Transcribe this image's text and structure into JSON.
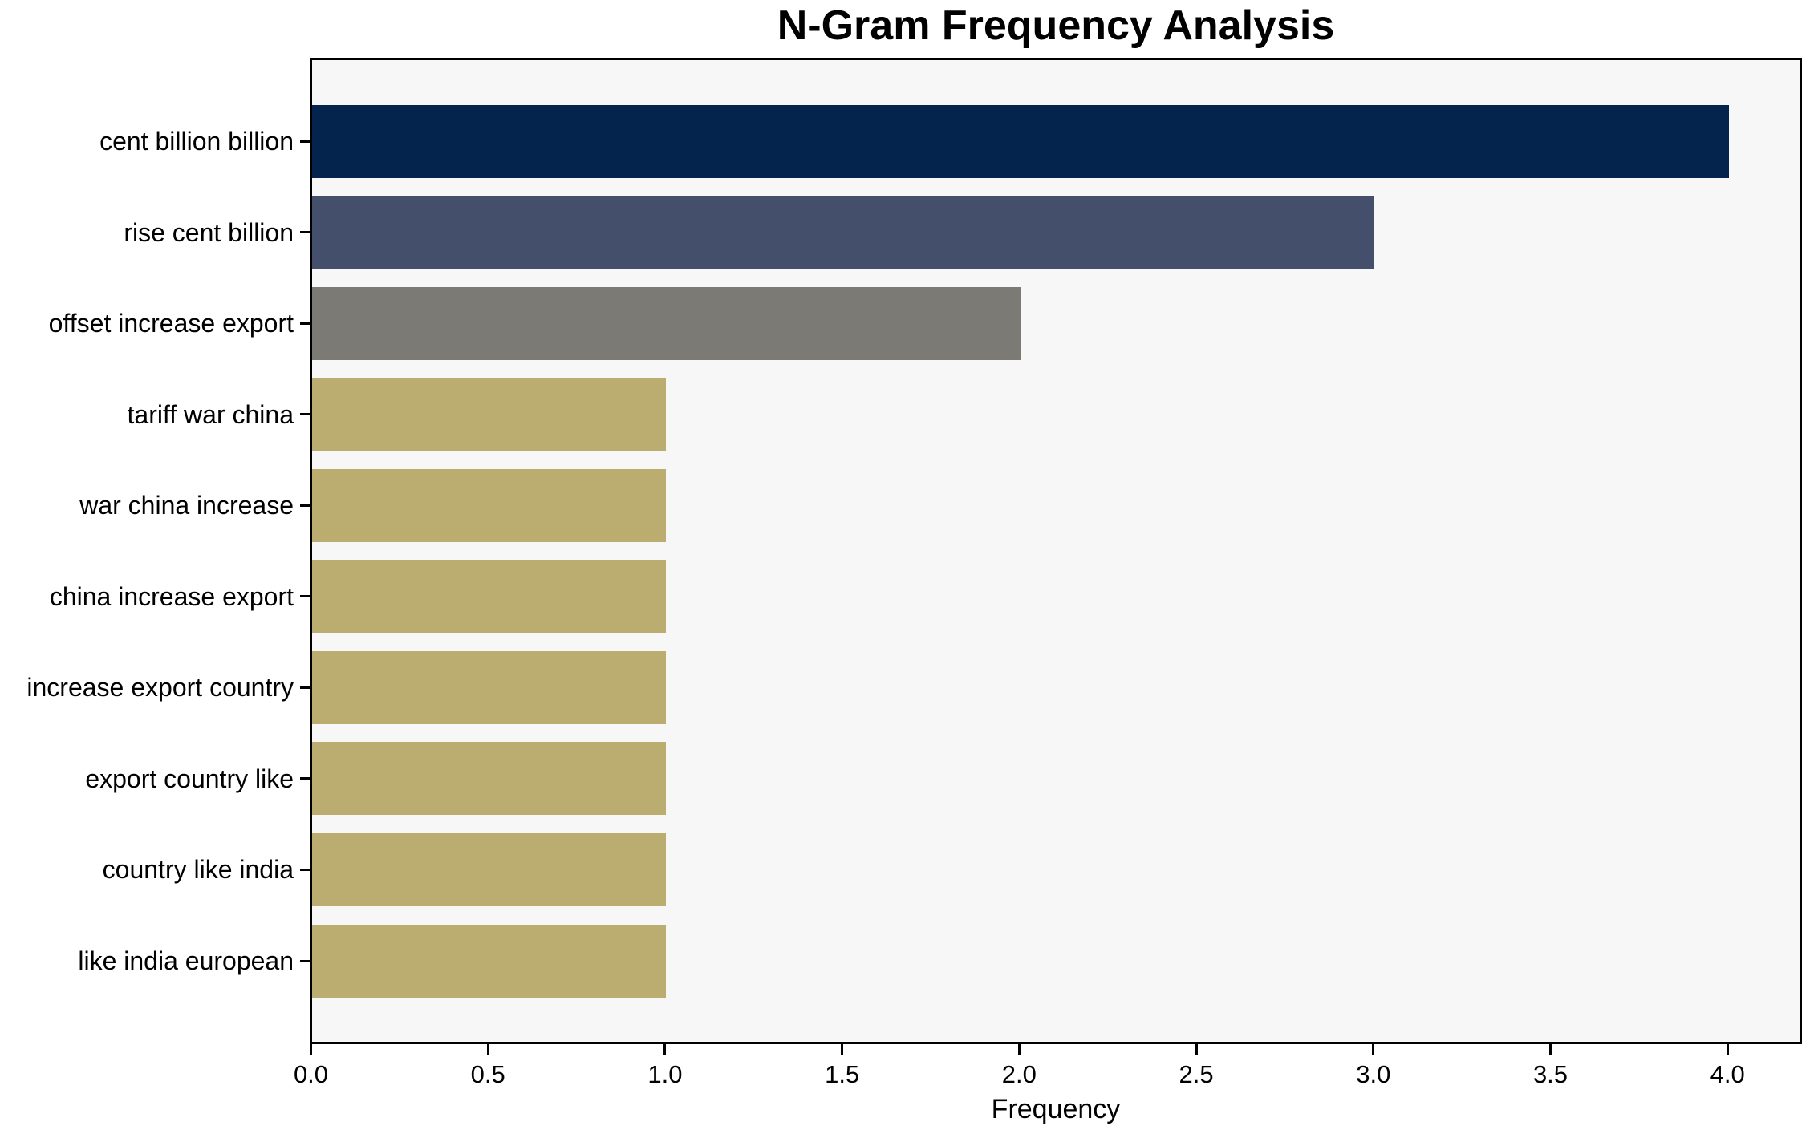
{
  "chart_data": {
    "type": "bar",
    "orientation": "horizontal",
    "title": "N-Gram Frequency Analysis",
    "xlabel": "Frequency",
    "ylabel": "",
    "categories": [
      "cent billion billion",
      "rise cent billion",
      "offset increase export",
      "tariff war china",
      "war china increase",
      "china increase export",
      "increase export country",
      "export country like",
      "country like india",
      "like india european"
    ],
    "values": [
      4,
      3,
      2,
      1,
      1,
      1,
      1,
      1,
      1,
      1
    ],
    "bar_colors": [
      "#04234d",
      "#44506b",
      "#7b7a75",
      "#bbac6f",
      "#bbac6f",
      "#bbac6f",
      "#bbac6f",
      "#bbac6f",
      "#bbac6f",
      "#bbac6f"
    ],
    "xlim": [
      0,
      4.2
    ],
    "xticks": [
      "0.0",
      "0.5",
      "1.0",
      "1.5",
      "2.0",
      "2.5",
      "3.0",
      "3.5",
      "4.0"
    ],
    "xtick_values": [
      0.0,
      0.5,
      1.0,
      1.5,
      2.0,
      2.5,
      3.0,
      3.5,
      4.0
    ],
    "grid": false,
    "legend": "none",
    "colors": {
      "axes_background": "#f7f7f7",
      "figure_background": "#ffffff",
      "spine": "#000000",
      "text": "#000000"
    }
  }
}
